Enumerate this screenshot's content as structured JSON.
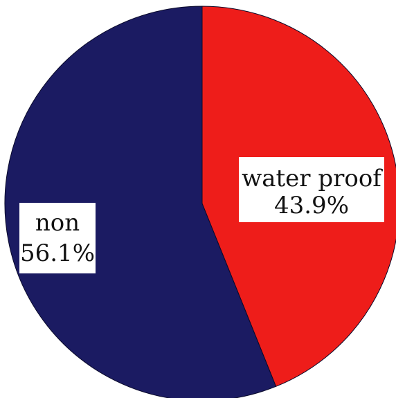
{
  "chart_data": {
    "type": "pie",
    "categories": [
      "water proof",
      "non"
    ],
    "values": [
      43.9,
      56.1
    ],
    "value_labels": [
      "43.9%",
      "56.1%"
    ],
    "colors": [
      "#ee1d1a",
      "#1b1b62"
    ],
    "start_angle_deg": 0,
    "direction": "clockwise",
    "legend": "none"
  }
}
